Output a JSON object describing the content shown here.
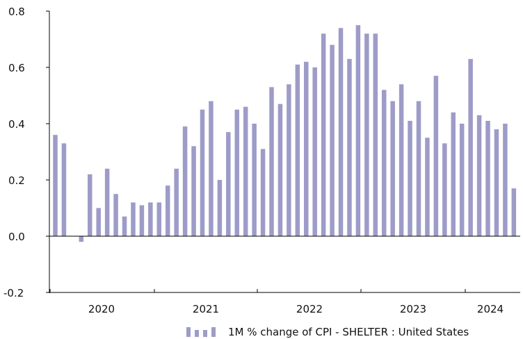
{
  "colors": {
    "bar": "#9d9cc8",
    "axis": "#000000",
    "text": "#111111",
    "background": "#ffffff"
  },
  "chart_data": {
    "type": "bar",
    "title": "",
    "xlabel": "",
    "ylabel": "",
    "ylim": [
      -0.2,
      0.8
    ],
    "yticks": [
      "0.8",
      "0.6",
      "0.4",
      "0.2",
      "0.0",
      "-0.2"
    ],
    "year_labels": [
      "2020",
      "2021",
      "2022",
      "2023",
      "2024"
    ],
    "grid": false,
    "legend_position": "bottom-right",
    "series": [
      {
        "name": "1M % change of CPI - SHELTER : United States",
        "values": [
          0.36,
          0.33,
          0.0,
          -0.02,
          0.22,
          0.1,
          0.24,
          0.15,
          0.07,
          0.12,
          0.11,
          0.12,
          0.12,
          0.18,
          0.24,
          0.39,
          0.32,
          0.45,
          0.48,
          0.2,
          0.37,
          0.45,
          0.46,
          0.4,
          0.31,
          0.53,
          0.47,
          0.54,
          0.61,
          0.62,
          0.6,
          0.72,
          0.68,
          0.74,
          0.63,
          0.75,
          0.72,
          0.72,
          0.52,
          0.48,
          0.54,
          0.41,
          0.48,
          0.35,
          0.57,
          0.33,
          0.44,
          0.4,
          0.63,
          0.43,
          0.41,
          0.38,
          0.4,
          0.17
        ]
      }
    ]
  }
}
